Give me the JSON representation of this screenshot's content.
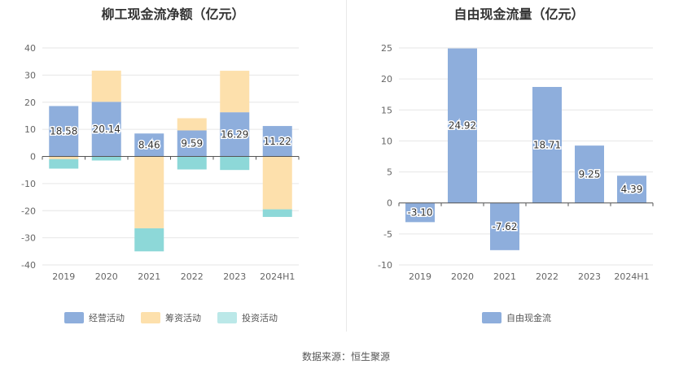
{
  "titles": {
    "left": "柳工现金流净额（亿元）",
    "right": "自由现金流量（亿元）"
  },
  "source": "数据来源：恒生聚源",
  "chart_data": [
    {
      "type": "bar",
      "stacked": true,
      "title": "柳工现金流净额（亿元）",
      "categories": [
        "2019",
        "2020",
        "2021",
        "2022",
        "2023",
        "2024H1"
      ],
      "ylim": [
        -40,
        40
      ],
      "yticks": [
        40,
        30,
        20,
        10,
        0,
        -10,
        -20,
        -30,
        -40
      ],
      "grid": true,
      "legend_position": "bottom",
      "series": [
        {
          "name": "经营活动",
          "color": "#8eaedc",
          "values": [
            18.58,
            20.14,
            8.46,
            9.59,
            16.29,
            11.22
          ],
          "labels": [
            "18.58",
            "20.14",
            "8.46",
            "9.59",
            "16.29",
            "11.22"
          ]
        },
        {
          "name": "筹资活动",
          "color": "#fde0ac",
          "values": [
            -1.0,
            11.5,
            -26.5,
            4.5,
            15.3,
            -19.5
          ]
        },
        {
          "name": "投资活动",
          "color": "#8dd8d8",
          "values": [
            -3.5,
            -1.5,
            -8.5,
            -4.8,
            -5.0,
            -2.8
          ]
        }
      ]
    },
    {
      "type": "bar",
      "title": "自由现金流量（亿元）",
      "categories": [
        "2019",
        "2020",
        "2021",
        "2022",
        "2023",
        "2024H1"
      ],
      "ylim": [
        -10,
        25
      ],
      "yticks": [
        25,
        20,
        15,
        10,
        5,
        0,
        -5,
        -10
      ],
      "grid": true,
      "legend_position": "bottom",
      "series": [
        {
          "name": "自由现金流",
          "color": "#8eaedc",
          "values": [
            -3.1,
            24.92,
            -7.62,
            18.71,
            9.25,
            4.39
          ],
          "labels": [
            "-3.10",
            "24.92",
            "-7.62",
            "18.71",
            "9.25",
            "4.39"
          ]
        }
      ]
    }
  ]
}
